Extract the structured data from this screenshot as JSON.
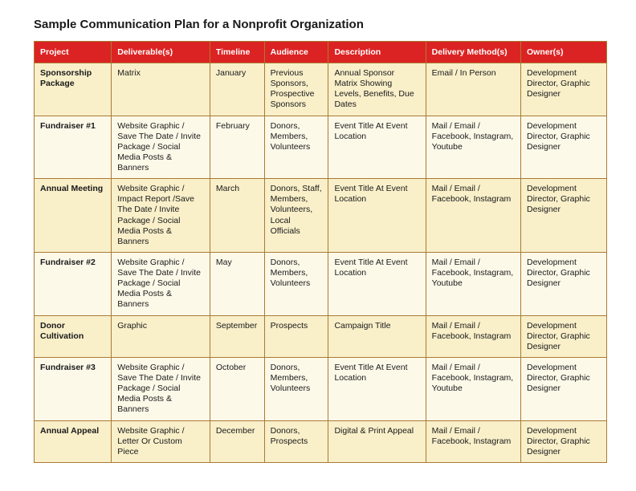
{
  "title": "Sample Communication Plan for a Nonprofit Organization",
  "table": {
    "columns": [
      "Project",
      "Deliverable(s)",
      "Timeline",
      "Audience",
      "Description",
      "Delivery Method(s)",
      "Owner(s)"
    ],
    "column_widths_pct": [
      13.5,
      17.2,
      9.5,
      11.2,
      17,
      16.6,
      15
    ],
    "header_bg": "#dc2323",
    "header_text_color": "#ffffff",
    "border_color": "#aa7a34",
    "band_colors": [
      "#f9efc9",
      "#fdf9e9"
    ],
    "font_size_pt": 10.5,
    "header_font_size_pt": 10.5,
    "rows": [
      {
        "project": "Sponsorship Package",
        "deliverables": "Matrix",
        "timeline": "January",
        "audience": "Previous Sponsors, Prospective Sponsors",
        "description": "Annual Sponsor Matrix Showing Levels, Benefits, Due Dates",
        "delivery": "Email / In Person",
        "owners": "Development Director, Graphic Designer"
      },
      {
        "project": "Fundraiser #1",
        "deliverables": "Website Graphic / Save The Date / Invite Package / Social Media Posts & Banners",
        "timeline": "February",
        "audience": "Donors, Members, Volunteers",
        "description": "Event Title At Event Location",
        "delivery": "Mail / Email / Facebook, Instagram, Youtube",
        "owners": "Development Director, Graphic Designer"
      },
      {
        "project": "Annual Meeting",
        "deliverables": "Website Graphic / Impact Report /Save The Date / Invite Package / Social Media Posts & Banners",
        "timeline": "March",
        "audience": "Donors, Staff, Members, Volunteers, Local Officials",
        "description": "Event Title At Event Location",
        "delivery": "Mail / Email / Facebook, Instagram",
        "owners": "Development Director, Graphic Designer"
      },
      {
        "project": "Fundraiser #2",
        "deliverables": "Website Graphic / Save The Date / Invite Package / Social Media Posts & Banners",
        "timeline": "May",
        "audience": "Donors, Members, Volunteers",
        "description": "Event Title At Event Location",
        "delivery": "Mail / Email / Facebook, Instagram, Youtube",
        "owners": "Development Director, Graphic Designer"
      },
      {
        "project": "Donor Cultivation",
        "deliverables": "Graphic",
        "timeline": "September",
        "audience": "Prospects",
        "description": "Campaign Title",
        "delivery": "Mail / Email / Facebook, Instagram",
        "owners": "Development Director, Graphic Designer"
      },
      {
        "project": "Fundraiser #3",
        "deliverables": "Website Graphic / Save The Date / Invite Package / Social Media Posts & Banners",
        "timeline": "October",
        "audience": "Donors, Members, Volunteers",
        "description": "Event Title At Event Location",
        "delivery": "Mail / Email / Facebook, Instagram, Youtube",
        "owners": "Development Director, Graphic Designer"
      },
      {
        "project": "Annual Appeal",
        "deliverables": "Website Graphic / Letter Or Custom Piece",
        "timeline": "December",
        "audience": "Donors, Prospects",
        "description": "Digital & Print Appeal",
        "delivery": "Mail / Email / Facebook, Instagram",
        "owners": "Development Director, Graphic Designer"
      }
    ]
  }
}
